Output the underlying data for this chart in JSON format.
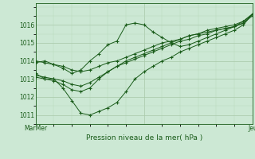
{
  "background_color": "#cce8d4",
  "plot_bg_color": "#cce8d4",
  "grid_color_major": "#a8c8a8",
  "grid_color_minor": "#b8d8b8",
  "line_color": "#1a5c1a",
  "title": "Pression niveau de la mer( hPa )",
  "xlabel_left": "Mar",
  "xlabel_mid": "Mer",
  "xlabel_right": "Jeu",
  "ylim": [
    1010.5,
    1017.2
  ],
  "yticks": [
    1011,
    1012,
    1013,
    1014,
    1015,
    1016
  ],
  "series": [
    [
      1013.9,
      1014.0,
      1013.8,
      1013.6,
      1013.3,
      1013.5,
      1014.0,
      1014.4,
      1014.9,
      1015.1,
      1016.0,
      1016.1,
      1016.0,
      1015.6,
      1015.3,
      1015.0,
      1014.8,
      1014.9,
      1015.1,
      1015.3,
      1015.5,
      1015.7,
      1015.9,
      1016.2,
      1016.6
    ],
    [
      1013.3,
      1013.0,
      1013.0,
      1012.5,
      1011.8,
      1011.1,
      1011.0,
      1011.2,
      1011.4,
      1011.7,
      1012.3,
      1013.0,
      1013.4,
      1013.7,
      1014.0,
      1014.2,
      1014.5,
      1014.7,
      1014.9,
      1015.1,
      1015.3,
      1015.5,
      1015.7,
      1016.0,
      1016.6
    ],
    [
      1013.1,
      1013.0,
      1012.9,
      1012.7,
      1012.4,
      1012.3,
      1012.5,
      1013.0,
      1013.4,
      1013.7,
      1014.0,
      1014.2,
      1014.4,
      1014.6,
      1014.8,
      1015.0,
      1015.2,
      1015.4,
      1015.5,
      1015.7,
      1015.8,
      1015.9,
      1016.0,
      1016.2,
      1016.6
    ],
    [
      1013.2,
      1013.1,
      1013.0,
      1012.9,
      1012.7,
      1012.6,
      1012.8,
      1013.1,
      1013.4,
      1013.7,
      1013.9,
      1014.1,
      1014.3,
      1014.5,
      1014.7,
      1014.9,
      1015.1,
      1015.2,
      1015.4,
      1015.5,
      1015.7,
      1015.8,
      1015.9,
      1016.1,
      1016.5
    ],
    [
      1014.0,
      1013.9,
      1013.8,
      1013.7,
      1013.5,
      1013.4,
      1013.5,
      1013.7,
      1013.9,
      1014.0,
      1014.2,
      1014.4,
      1014.6,
      1014.8,
      1015.0,
      1015.1,
      1015.2,
      1015.4,
      1015.5,
      1015.6,
      1015.7,
      1015.8,
      1015.9,
      1016.1,
      1016.6
    ]
  ],
  "n_points": 25,
  "figsize": [
    3.2,
    2.0
  ],
  "dpi": 100
}
